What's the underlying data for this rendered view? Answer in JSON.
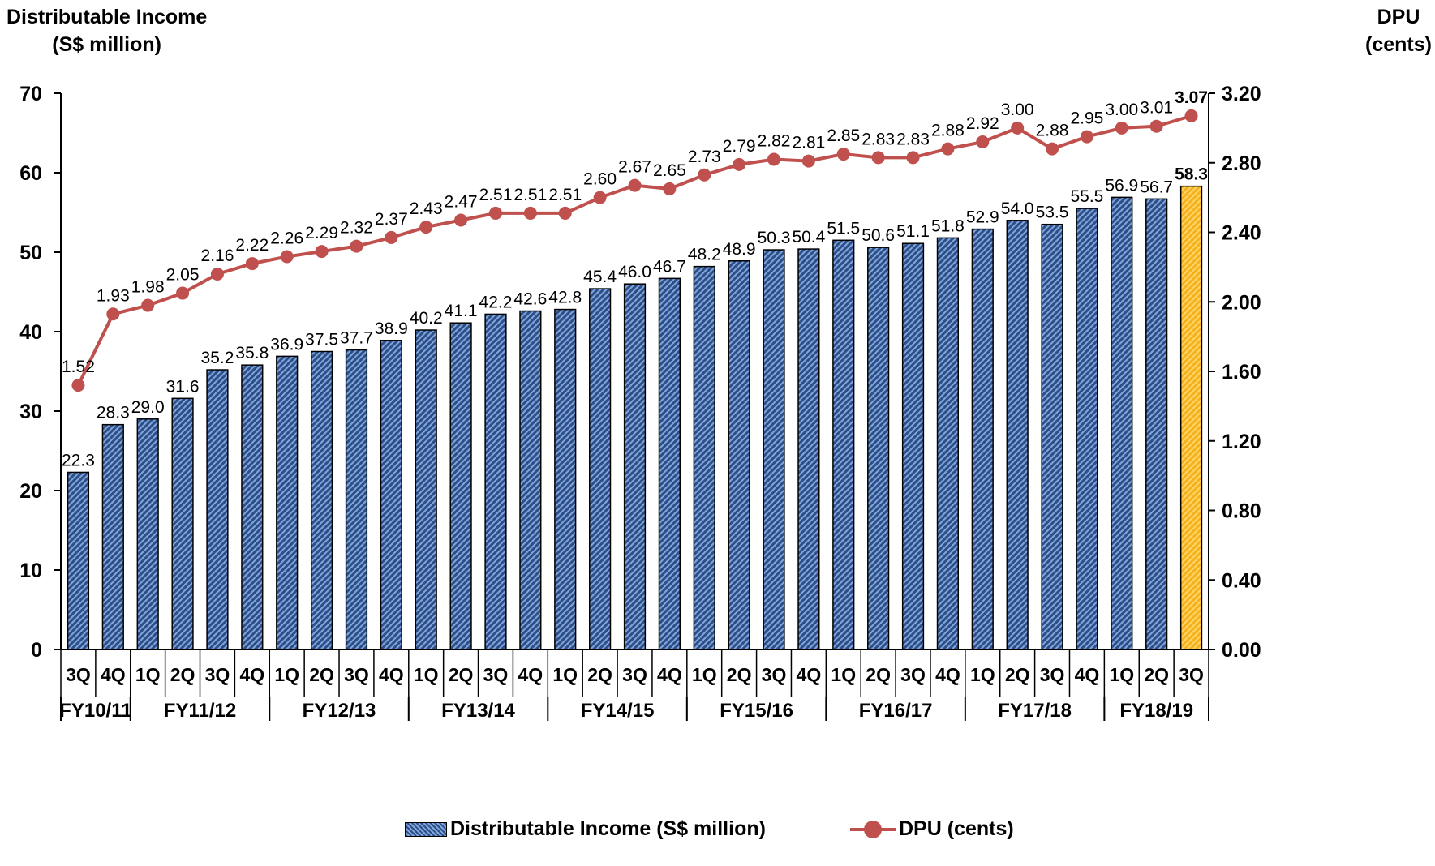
{
  "chart_data": {
    "type": "bar",
    "left_axis_title": [
      "Distributable Income",
      "(S$ million)"
    ],
    "right_axis_title": [
      "DPU",
      "(cents)"
    ],
    "left_ylim": [
      0,
      70
    ],
    "left_ticks": [
      "0",
      "10",
      "20",
      "30",
      "40",
      "50",
      "60",
      "70"
    ],
    "right_ylim": [
      0,
      3.2
    ],
    "right_ticks": [
      "0.00",
      "0.40",
      "0.80",
      "1.20",
      "1.60",
      "2.00",
      "2.40",
      "2.80",
      "3.20"
    ],
    "quarters": [
      "3Q",
      "4Q",
      "1Q",
      "2Q",
      "3Q",
      "4Q",
      "1Q",
      "2Q",
      "3Q",
      "4Q",
      "1Q",
      "2Q",
      "3Q",
      "4Q",
      "1Q",
      "2Q",
      "3Q",
      "4Q",
      "1Q",
      "2Q",
      "3Q",
      "4Q",
      "1Q",
      "2Q",
      "3Q",
      "4Q",
      "1Q",
      "2Q",
      "3Q",
      "4Q",
      "1Q",
      "2Q",
      "3Q"
    ],
    "fiscal_years": [
      {
        "label": "FY10/11",
        "count": 2
      },
      {
        "label": "FY11/12",
        "count": 4
      },
      {
        "label": "FY12/13",
        "count": 4
      },
      {
        "label": "FY13/14",
        "count": 4
      },
      {
        "label": "FY14/15",
        "count": 4
      },
      {
        "label": "FY15/16",
        "count": 4
      },
      {
        "label": "FY16/17",
        "count": 4
      },
      {
        "label": "FY17/18",
        "count": 4
      },
      {
        "label": "FY18/19",
        "count": 3
      }
    ],
    "series": [
      {
        "name": "Distributable Income (S$ million)",
        "type": "bar",
        "axis": "left",
        "color": "#2e4e87",
        "highlight_color": "#f5b21d",
        "values": [
          22.3,
          28.3,
          29.0,
          31.6,
          35.2,
          35.8,
          36.9,
          37.5,
          37.7,
          38.9,
          40.2,
          41.1,
          42.2,
          42.6,
          42.8,
          45.4,
          46.0,
          46.7,
          48.2,
          48.9,
          50.3,
          50.4,
          51.5,
          50.6,
          51.1,
          51.8,
          52.9,
          54.0,
          53.5,
          55.5,
          56.9,
          56.7,
          58.3
        ],
        "labels": [
          "22.3",
          "28.3",
          "29.0",
          "31.6",
          "35.2",
          "35.8",
          "36.9",
          "37.5",
          "37.7",
          "38.9",
          "40.2",
          "41.1",
          "42.2",
          "42.6",
          "42.8",
          "45.4",
          "46.0",
          "46.7",
          "48.2",
          "48.9",
          "50.3",
          "50.4",
          "51.5",
          "50.6",
          "51.1",
          "51.8",
          "52.9",
          "54.0",
          "53.5",
          "55.5",
          "56.9",
          "56.7",
          "58.3"
        ]
      },
      {
        "name": "DPU (cents)",
        "type": "line",
        "axis": "right",
        "color": "#c0504d",
        "values": [
          1.52,
          1.93,
          1.98,
          2.05,
          2.16,
          2.22,
          2.26,
          2.29,
          2.32,
          2.37,
          2.43,
          2.47,
          2.51,
          2.51,
          2.51,
          2.6,
          2.67,
          2.65,
          2.73,
          2.79,
          2.82,
          2.81,
          2.85,
          2.83,
          2.83,
          2.88,
          2.92,
          3.0,
          2.88,
          2.95,
          3.0,
          3.01,
          3.07
        ],
        "labels": [
          "1.52",
          "1.93",
          "1.98",
          "2.05",
          "2.16",
          "2.22",
          "2.26",
          "2.29",
          "2.32",
          "2.37",
          "2.43",
          "2.47",
          "2.51",
          "2.51",
          "2.51",
          "2.60",
          "2.67",
          "2.65",
          "2.73",
          "2.79",
          "2.82",
          "2.81",
          "2.85",
          "2.83",
          "2.83",
          "2.88",
          "2.92",
          "3.00",
          "2.88",
          "2.95",
          "3.00",
          "3.01",
          "3.07"
        ]
      }
    ],
    "legend_position": "bottom",
    "grid": false
  }
}
